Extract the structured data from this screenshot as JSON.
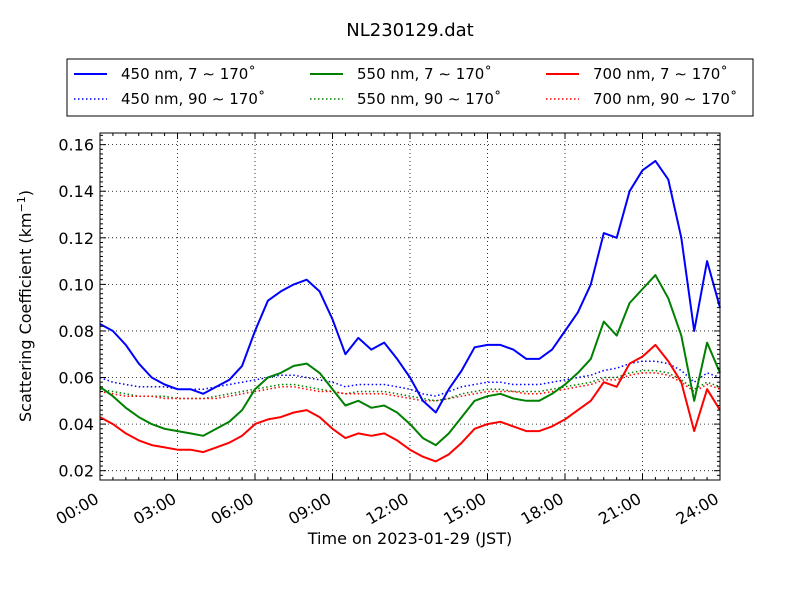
{
  "chart_data": {
    "type": "line",
    "title": "NL230129.dat",
    "xlabel": "Time on 2023-01-29 (JST)",
    "ylabel_main": "Scattering Coefficient (km",
    "ylabel_sup": "−1",
    "ylabel_close": ")",
    "xlim": [
      0,
      24
    ],
    "ylim": [
      0.016,
      0.165
    ],
    "x_ticks": [
      0,
      3,
      6,
      9,
      12,
      15,
      18,
      21,
      24
    ],
    "x_tick_labels": [
      "00:00",
      "03:00",
      "06:00",
      "09:00",
      "12:00",
      "15:00",
      "18:00",
      "21:00",
      "24:00"
    ],
    "y_ticks": [
      0.02,
      0.04,
      0.06,
      0.08,
      0.1,
      0.12,
      0.14,
      0.16
    ],
    "y_tick_labels": [
      "0.02",
      "0.04",
      "0.06",
      "0.08",
      "0.10",
      "0.12",
      "0.14",
      "0.16"
    ],
    "grid": true,
    "legend_position": "top",
    "legend_columns": 3,
    "x": [
      0,
      0.5,
      1,
      1.5,
      2,
      2.5,
      3,
      3.5,
      4,
      4.5,
      5,
      5.5,
      6,
      6.5,
      7,
      7.5,
      8,
      8.5,
      9,
      9.5,
      10,
      10.5,
      11,
      11.5,
      12,
      12.5,
      13,
      13.5,
      14,
      14.5,
      15,
      15.5,
      16,
      16.5,
      17,
      17.5,
      18,
      18.5,
      19,
      19.5,
      20,
      20.5,
      21,
      21.5,
      22,
      22.5,
      23,
      23.5,
      24
    ],
    "series": [
      {
        "name": "450 nm, 7 ∼ 170˚",
        "color": "#0000ff",
        "style": "solid",
        "values": [
          0.083,
          0.08,
          0.074,
          0.066,
          0.06,
          0.057,
          0.055,
          0.055,
          0.053,
          0.056,
          0.059,
          0.065,
          0.08,
          0.093,
          0.097,
          0.1,
          0.102,
          0.097,
          0.085,
          0.07,
          0.077,
          0.072,
          0.075,
          0.068,
          0.06,
          0.05,
          0.045,
          0.055,
          0.063,
          0.073,
          0.074,
          0.074,
          0.072,
          0.068,
          0.068,
          0.072,
          0.08,
          0.088,
          0.1,
          0.122,
          0.12,
          0.14,
          0.149,
          0.153,
          0.145,
          0.12,
          0.08,
          0.11,
          0.09
        ]
      },
      {
        "name": "450 nm, 90 ∼ 170˚",
        "color": "#0000ff",
        "style": "dotted",
        "values": [
          0.06,
          0.058,
          0.057,
          0.056,
          0.056,
          0.056,
          0.055,
          0.055,
          0.055,
          0.056,
          0.057,
          0.058,
          0.059,
          0.06,
          0.061,
          0.061,
          0.06,
          0.059,
          0.058,
          0.056,
          0.057,
          0.057,
          0.057,
          0.056,
          0.055,
          0.053,
          0.052,
          0.054,
          0.056,
          0.057,
          0.058,
          0.058,
          0.057,
          0.057,
          0.057,
          0.058,
          0.059,
          0.06,
          0.061,
          0.063,
          0.064,
          0.066,
          0.067,
          0.067,
          0.066,
          0.063,
          0.058,
          0.062,
          0.06
        ]
      },
      {
        "name": "550 nm, 7 ∼ 170˚",
        "color": "#008000",
        "style": "solid",
        "values": [
          0.056,
          0.052,
          0.047,
          0.043,
          0.04,
          0.038,
          0.037,
          0.036,
          0.035,
          0.038,
          0.041,
          0.046,
          0.055,
          0.06,
          0.062,
          0.065,
          0.066,
          0.062,
          0.055,
          0.048,
          0.05,
          0.047,
          0.048,
          0.045,
          0.04,
          0.034,
          0.031,
          0.036,
          0.043,
          0.05,
          0.052,
          0.053,
          0.051,
          0.05,
          0.05,
          0.053,
          0.057,
          0.062,
          0.068,
          0.084,
          0.078,
          0.092,
          0.098,
          0.104,
          0.094,
          0.078,
          0.05,
          0.075,
          0.062
        ]
      },
      {
        "name": "550 nm, 90 ∼ 170˚",
        "color": "#008000",
        "style": "dotted",
        "values": [
          0.055,
          0.054,
          0.053,
          0.052,
          0.052,
          0.052,
          0.051,
          0.051,
          0.051,
          0.052,
          0.053,
          0.054,
          0.055,
          0.056,
          0.057,
          0.057,
          0.056,
          0.055,
          0.054,
          0.053,
          0.054,
          0.054,
          0.054,
          0.053,
          0.052,
          0.051,
          0.05,
          0.051,
          0.053,
          0.054,
          0.055,
          0.055,
          0.054,
          0.054,
          0.054,
          0.055,
          0.056,
          0.057,
          0.058,
          0.06,
          0.06,
          0.062,
          0.063,
          0.063,
          0.062,
          0.059,
          0.055,
          0.058,
          0.056
        ]
      },
      {
        "name": "700 nm, 7 ∼ 170˚",
        "color": "#ff0000",
        "style": "solid",
        "values": [
          0.043,
          0.04,
          0.036,
          0.033,
          0.031,
          0.03,
          0.029,
          0.029,
          0.028,
          0.03,
          0.032,
          0.035,
          0.04,
          0.042,
          0.043,
          0.045,
          0.046,
          0.043,
          0.038,
          0.034,
          0.036,
          0.035,
          0.036,
          0.033,
          0.029,
          0.026,
          0.024,
          0.027,
          0.032,
          0.038,
          0.04,
          0.041,
          0.039,
          0.037,
          0.037,
          0.039,
          0.042,
          0.046,
          0.05,
          0.058,
          0.056,
          0.066,
          0.069,
          0.074,
          0.067,
          0.058,
          0.037,
          0.055,
          0.046
        ]
      },
      {
        "name": "700 nm, 90 ∼ 170˚",
        "color": "#ff0000",
        "style": "dotted",
        "values": [
          0.054,
          0.053,
          0.052,
          0.052,
          0.052,
          0.051,
          0.051,
          0.051,
          0.051,
          0.051,
          0.052,
          0.053,
          0.054,
          0.055,
          0.056,
          0.056,
          0.055,
          0.054,
          0.054,
          0.053,
          0.053,
          0.053,
          0.053,
          0.052,
          0.051,
          0.05,
          0.05,
          0.051,
          0.052,
          0.053,
          0.054,
          0.054,
          0.054,
          0.053,
          0.053,
          0.054,
          0.055,
          0.056,
          0.057,
          0.059,
          0.059,
          0.061,
          0.062,
          0.062,
          0.061,
          0.058,
          0.054,
          0.057,
          0.055
        ]
      }
    ]
  }
}
